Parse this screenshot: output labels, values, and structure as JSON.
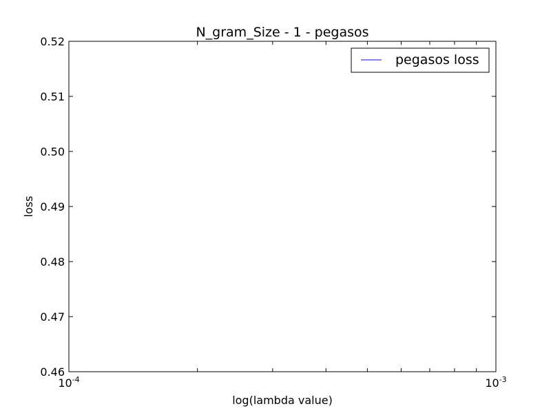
{
  "chart_data": {
    "type": "line",
    "title": "N_gram_Size - 1 - pegasos",
    "xlabel": "log(lambda value)",
    "ylabel": "loss",
    "xscale": "log",
    "xlim": [
      0.0001,
      0.001
    ],
    "ylim": [
      0.46,
      0.52
    ],
    "x_ticks": [
      {
        "value": 0.0001,
        "base": "10",
        "exponent": "-4"
      },
      {
        "value": 0.001,
        "base": "10",
        "exponent": "-3"
      }
    ],
    "y_ticks": [
      {
        "value": 0.46,
        "label": "0.46"
      },
      {
        "value": 0.47,
        "label": "0.47"
      },
      {
        "value": 0.48,
        "label": "0.48"
      },
      {
        "value": 0.49,
        "label": "0.49"
      },
      {
        "value": 0.5,
        "label": "0.50"
      },
      {
        "value": 0.51,
        "label": "0.51"
      },
      {
        "value": 0.52,
        "label": "0.52"
      }
    ],
    "series": [
      {
        "name": "pegasos loss",
        "color": "#0000ff",
        "x": [],
        "y": []
      }
    ],
    "legend": {
      "position": "top-right"
    },
    "grid": false
  }
}
